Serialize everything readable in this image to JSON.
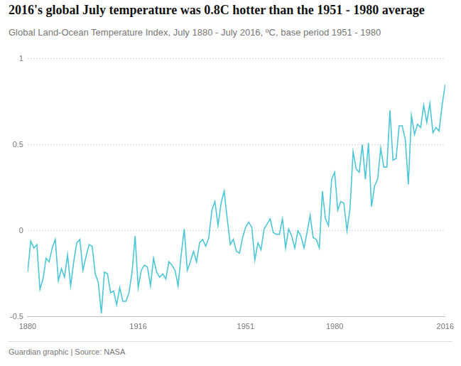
{
  "chart_data": {
    "type": "line",
    "title": "2016's global July temperature was 0.8C hotter than the 1951 - 1980 average",
    "subtitle": "Global Land-Ocean Temperature Index, July 1880 - July 2016, ºC, base period 1951 - 1980",
    "source": "Guardian graphic | Source: NASA",
    "x": [
      1880,
      1881,
      1882,
      1883,
      1884,
      1885,
      1886,
      1887,
      1888,
      1889,
      1890,
      1891,
      1892,
      1893,
      1894,
      1895,
      1896,
      1897,
      1898,
      1899,
      1900,
      1901,
      1902,
      1903,
      1904,
      1905,
      1906,
      1907,
      1908,
      1909,
      1910,
      1911,
      1912,
      1913,
      1914,
      1915,
      1916,
      1917,
      1918,
      1919,
      1920,
      1921,
      1922,
      1923,
      1924,
      1925,
      1926,
      1927,
      1928,
      1929,
      1930,
      1931,
      1932,
      1933,
      1934,
      1935,
      1936,
      1937,
      1938,
      1939,
      1940,
      1941,
      1942,
      1943,
      1944,
      1945,
      1946,
      1947,
      1948,
      1949,
      1950,
      1951,
      1952,
      1953,
      1954,
      1955,
      1956,
      1957,
      1958,
      1959,
      1960,
      1961,
      1962,
      1963,
      1964,
      1965,
      1966,
      1967,
      1968,
      1969,
      1970,
      1971,
      1972,
      1973,
      1974,
      1975,
      1976,
      1977,
      1978,
      1979,
      1980,
      1981,
      1982,
      1983,
      1984,
      1985,
      1986,
      1987,
      1988,
      1989,
      1990,
      1991,
      1992,
      1993,
      1994,
      1995,
      1996,
      1997,
      1998,
      1999,
      2000,
      2001,
      2002,
      2003,
      2004,
      2005,
      2006,
      2007,
      2008,
      2009,
      2010,
      2011,
      2012,
      2013,
      2014,
      2015,
      2016
    ],
    "values": [
      -0.24,
      -0.06,
      -0.1,
      -0.08,
      -0.34,
      -0.28,
      -0.16,
      -0.18,
      -0.1,
      -0.05,
      -0.29,
      -0.22,
      -0.27,
      -0.14,
      -0.32,
      -0.18,
      -0.07,
      -0.05,
      -0.23,
      -0.15,
      -0.08,
      -0.09,
      -0.25,
      -0.3,
      -0.48,
      -0.24,
      -0.25,
      -0.36,
      -0.35,
      -0.43,
      -0.33,
      -0.41,
      -0.41,
      -0.36,
      -0.24,
      -0.03,
      -0.33,
      -0.23,
      -0.2,
      -0.21,
      -0.32,
      -0.16,
      -0.24,
      -0.27,
      -0.25,
      -0.28,
      -0.18,
      -0.2,
      -0.23,
      -0.32,
      -0.14,
      0.01,
      -0.23,
      -0.18,
      -0.12,
      -0.18,
      -0.07,
      -0.05,
      -0.09,
      -0.04,
      0.12,
      0.17,
      0.03,
      0.16,
      0.23,
      0.07,
      -0.08,
      -0.05,
      -0.12,
      -0.13,
      -0.04,
      0.02,
      0.05,
      0.02,
      -0.17,
      -0.07,
      -0.11,
      0.01,
      0.04,
      0.07,
      -0.01,
      -0.02,
      -0.02,
      0.07,
      -0.1,
      0.01,
      -0.03,
      -0.1,
      0.0,
      -0.03,
      -0.1,
      -0.01,
      0.09,
      -0.04,
      -0.05,
      -0.1,
      0.23,
      0.07,
      0.03,
      0.3,
      0.34,
      0.12,
      0.17,
      0.16,
      0.0,
      0.13,
      0.46,
      0.36,
      0.34,
      0.5,
      0.3,
      0.51,
      0.14,
      0.26,
      0.3,
      0.48,
      0.37,
      0.37,
      0.7,
      0.41,
      0.42,
      0.61,
      0.61,
      0.53,
      0.27,
      0.67,
      0.56,
      0.62,
      0.6,
      0.73,
      0.63,
      0.74,
      0.57,
      0.6,
      0.58,
      0.73,
      0.85
    ],
    "color": "#4bc6d6",
    "xlim": [
      1880,
      2016
    ],
    "xticks": [
      1880,
      1916,
      1951,
      1980,
      2016
    ],
    "ylim": [
      -0.5,
      1
    ],
    "yticks": [
      -0.5,
      0,
      0.5,
      1
    ],
    "grid": true
  }
}
